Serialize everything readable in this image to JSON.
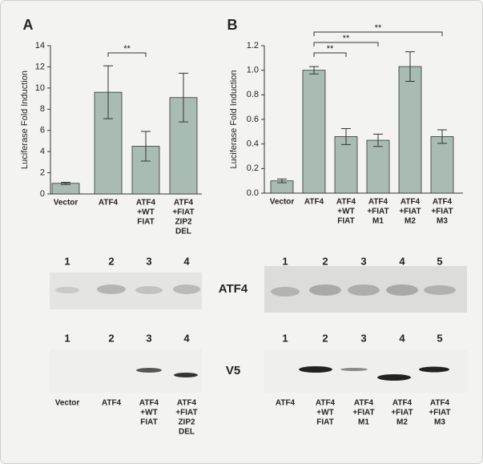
{
  "chart_data": [
    {
      "type": "bar",
      "panel_label": "A",
      "y_label": "Luciferase Fold Induction",
      "categories": [
        [
          "Vector"
        ],
        [
          "ATF4"
        ],
        [
          "ATF4",
          "+WT",
          "FIAT"
        ],
        [
          "ATF4",
          "+FIAT",
          "ZIP2",
          "DEL"
        ]
      ],
      "values": [
        1.0,
        9.6,
        4.5,
        9.1
      ],
      "errors": [
        0.1,
        2.5,
        1.4,
        2.3
      ],
      "color": "#a9bcb3",
      "ylim": [
        0,
        14
      ],
      "yticks": [
        0,
        2,
        4,
        6,
        8,
        10,
        12,
        14
      ],
      "significance": [
        {
          "between": [
            1,
            2
          ],
          "label": "**"
        }
      ]
    },
    {
      "type": "bar",
      "panel_label": "B",
      "y_label": "Luciferase Fold Induction",
      "categories": [
        [
          "Vector"
        ],
        [
          "ATF4"
        ],
        [
          "ATF4",
          "+WT",
          "FIAT"
        ],
        [
          "ATF4",
          "+FIAT",
          "M1"
        ],
        [
          "ATF4",
          "+FIAT",
          "M2"
        ],
        [
          "ATF4",
          "+FIAT",
          "M3"
        ]
      ],
      "values": [
        0.1,
        1.0,
        0.46,
        0.43,
        1.03,
        0.46
      ],
      "errors": [
        0.015,
        0.03,
        0.065,
        0.05,
        0.12,
        0.055
      ],
      "color": "#a9bcb3",
      "ylim": [
        0,
        1.2
      ],
      "yticks": [
        {
          "value": 0,
          "label": "0.0"
        },
        0.2,
        0.4,
        0.6,
        0.8,
        {
          "value": 1,
          "label": "1.0"
        },
        1.2
      ],
      "significance": [
        {
          "between": [
            1,
            2
          ],
          "label": "**"
        },
        {
          "between": [
            1,
            3
          ],
          "label": "**"
        },
        {
          "between": [
            1,
            5
          ],
          "label": "**"
        }
      ]
    }
  ],
  "blots": {
    "row_labels": [
      "ATF4",
      "V5"
    ],
    "a": {
      "top_lanes": [
        "1",
        "2",
        "3",
        "4"
      ],
      "bottom_lanes": [
        "1",
        "2",
        "3",
        "4"
      ],
      "lane_labels": [
        [
          "Vector"
        ],
        [
          "ATF4"
        ],
        [
          "ATF4",
          "+WT",
          "FIAT"
        ],
        [
          "ATF4",
          "+FIAT",
          "ZIP2",
          "DEL"
        ]
      ]
    },
    "b": {
      "top_lanes": [
        "1",
        "2",
        "3",
        "4",
        "5"
      ],
      "bottom_lanes": [
        "1",
        "2",
        "3",
        "4",
        "5"
      ],
      "lane_labels": [
        [
          "ATF4"
        ],
        [
          "ATF4",
          "+WT",
          "FIAT"
        ],
        [
          "ATF4",
          "+FIAT",
          "M1"
        ],
        [
          "ATF4",
          "+FIAT",
          "M2"
        ],
        [
          "ATF4",
          "+FIAT",
          "M3"
        ]
      ]
    }
  }
}
